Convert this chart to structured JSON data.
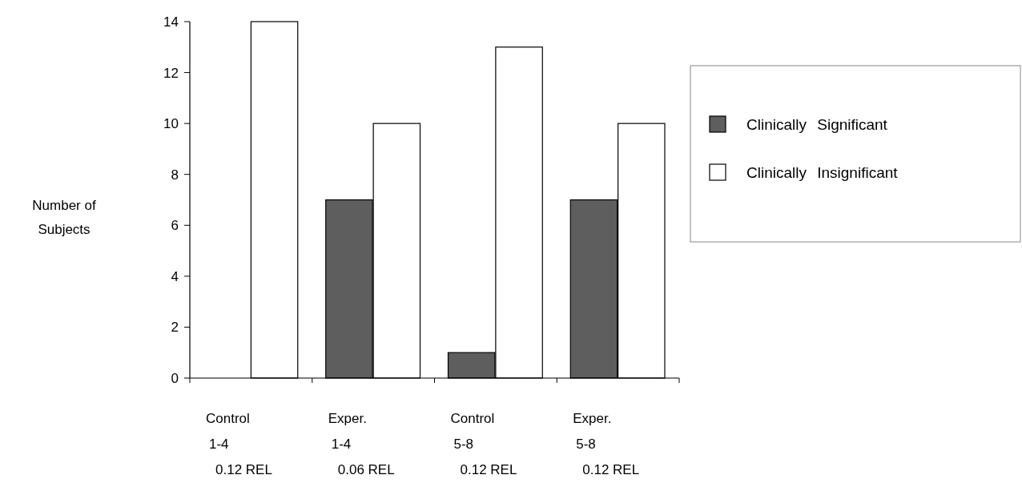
{
  "chart_data": {
    "type": "bar",
    "ylabel": "Number of\nSubjects",
    "categories": [
      "Control\n1-4\n0.12 REL",
      "Exper.\n1-4\n0.06 REL",
      "Control\n5-8\n0.12 REL",
      "Exper.\n5-8\n0.12 REL"
    ],
    "series": [
      {
        "name": "Clinically Significant",
        "color": "#5e5e5e",
        "values": [
          0,
          7,
          1,
          7
        ]
      },
      {
        "name": "Clinically Insignificant",
        "color": "#ffffff",
        "values": [
          14,
          10,
          13,
          10
        ]
      }
    ],
    "ylim": [
      0,
      14
    ],
    "yticks": [
      0,
      2,
      4,
      6,
      8,
      10,
      12,
      14
    ],
    "grid": false,
    "legend": "right"
  }
}
